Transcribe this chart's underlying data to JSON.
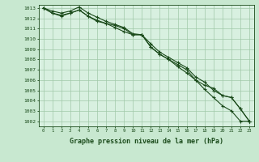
{
  "x": [
    0,
    1,
    2,
    3,
    4,
    5,
    6,
    7,
    8,
    9,
    10,
    11,
    12,
    13,
    14,
    15,
    16,
    17,
    18,
    19,
    20,
    21,
    22,
    23
  ],
  "line1": [
    1013.0,
    1012.7,
    1012.5,
    1012.7,
    1013.1,
    1012.5,
    1012.1,
    1011.7,
    1011.4,
    1011.1,
    1010.5,
    1010.4,
    1009.2,
    1008.5,
    1008.0,
    1007.3,
    1006.7,
    1006.0,
    1005.1,
    1004.3,
    1003.5,
    1003.0,
    1002.0,
    1002.0
  ],
  "line2": [
    1013.0,
    1012.5,
    1012.3,
    1012.5,
    1012.8,
    1012.2,
    1011.8,
    1011.5,
    1011.1,
    1010.7,
    1010.4,
    1010.4,
    1009.2,
    1008.5,
    1008.0,
    1007.5,
    1007.0,
    1006.0,
    1005.5,
    1005.2,
    1004.5,
    1004.3,
    1003.2,
    1002.0
  ],
  "line3": [
    1013.0,
    1012.5,
    1012.2,
    1012.5,
    1012.8,
    1012.2,
    1011.7,
    1011.5,
    1011.3,
    1011.0,
    1010.4,
    1010.4,
    1009.5,
    1008.7,
    1008.2,
    1007.7,
    1007.2,
    1006.3,
    1005.8,
    1005.0,
    1004.5,
    1004.3,
    1003.2,
    1002.0
  ],
  "line_color": "#1a4a1a",
  "background_color": "#c8e8d0",
  "plot_bg_color": "#d8f0e0",
  "grid_color": "#a0c8a8",
  "xlabel": "Graphe pression niveau de la mer (hPa)",
  "ylim": [
    1001.5,
    1013.3
  ],
  "xlim": [
    -0.5,
    23.5
  ],
  "yticks": [
    1002,
    1003,
    1004,
    1005,
    1006,
    1007,
    1008,
    1009,
    1010,
    1011,
    1012,
    1013
  ],
  "xticks": [
    0,
    1,
    2,
    3,
    4,
    5,
    6,
    7,
    8,
    9,
    10,
    11,
    12,
    13,
    14,
    15,
    16,
    17,
    18,
    19,
    20,
    21,
    22,
    23
  ]
}
